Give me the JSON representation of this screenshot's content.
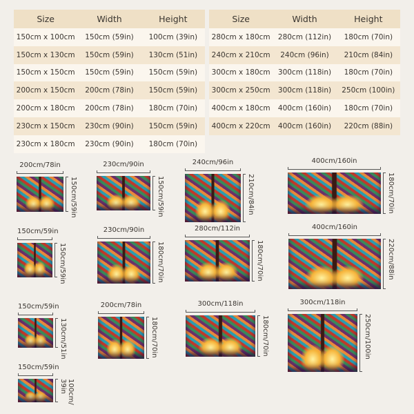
{
  "colors": {
    "background": "#f2efea",
    "header": "#efe0c6",
    "row_light": "#fbf6ee",
    "row_dark": "#f3e6d1"
  },
  "left_table": {
    "headers": [
      "Size",
      "Width",
      "Height"
    ],
    "rows": [
      [
        "150cm x 100cm",
        "150cm (59in)",
        "100cm (39in)"
      ],
      [
        "150cm x 130cm",
        "150cm (59in)",
        "130cm (51in)"
      ],
      [
        "150cm x 150cm",
        "150cm (59in)",
        "150cm (59in)"
      ],
      [
        "200cm x 150cm",
        "200cm (78in)",
        "150cm (59in)"
      ],
      [
        "200cm x 180cm",
        "200cm (78in)",
        "180cm (70in)"
      ],
      [
        "230cm x 150cm",
        "230cm (90in)",
        "150cm (59in)"
      ],
      [
        "230cm x 180cm",
        "230cm (90in)",
        "180cm (70in)"
      ]
    ]
  },
  "right_table": {
    "headers": [
      "Size",
      "Width",
      "Height"
    ],
    "rows": [
      [
        "280cm x 180cm",
        "280cm (112in)",
        "180cm (70in)"
      ],
      [
        "240cm x 210cm",
        "240cm (96in)",
        "210cm (84in)"
      ],
      [
        "300cm x 180cm",
        "300cm (118in)",
        "180cm (70in)"
      ],
      [
        "300cm x 250cm",
        "300cm (118in)",
        "250cm (100in)"
      ],
      [
        "400cm x 180cm",
        "400cm (160in)",
        "180cm (70in)"
      ],
      [
        "400cm x 220cm",
        "400cm (160in)",
        "220cm (88in)"
      ]
    ]
  },
  "thumbnails": [
    {
      "width_label": "200cm/78in",
      "height_label": "150cm/59in"
    },
    {
      "width_label": "230cm/90in",
      "height_label": "150cm/59in"
    },
    {
      "width_label": "240cm/96in",
      "height_label": "210cm/84in"
    },
    {
      "width_label": "400cm/160in",
      "height_label": "180cm/70in"
    },
    {
      "width_label": "150cm/59in",
      "height_label": "150cm/59in"
    },
    {
      "width_label": "230cm/90in",
      "height_label": "180cm/70in"
    },
    {
      "width_label": "280cm/112in",
      "height_label": "180cm/70in"
    },
    {
      "width_label": "400cm/160in",
      "height_label": "220cm/88in"
    },
    {
      "width_label": "150cm/59in",
      "height_label": "130cm/51in"
    },
    {
      "width_label": "200cm/78in",
      "height_label": "180cm/70in"
    },
    {
      "width_label": "300cm/118in",
      "height_label": "180cm/70in"
    },
    {
      "width_label": "300cm/118in",
      "height_label": "250cm/100in"
    },
    {
      "width_label": "150cm/59in",
      "height_label": "100cm/ 39in"
    }
  ]
}
